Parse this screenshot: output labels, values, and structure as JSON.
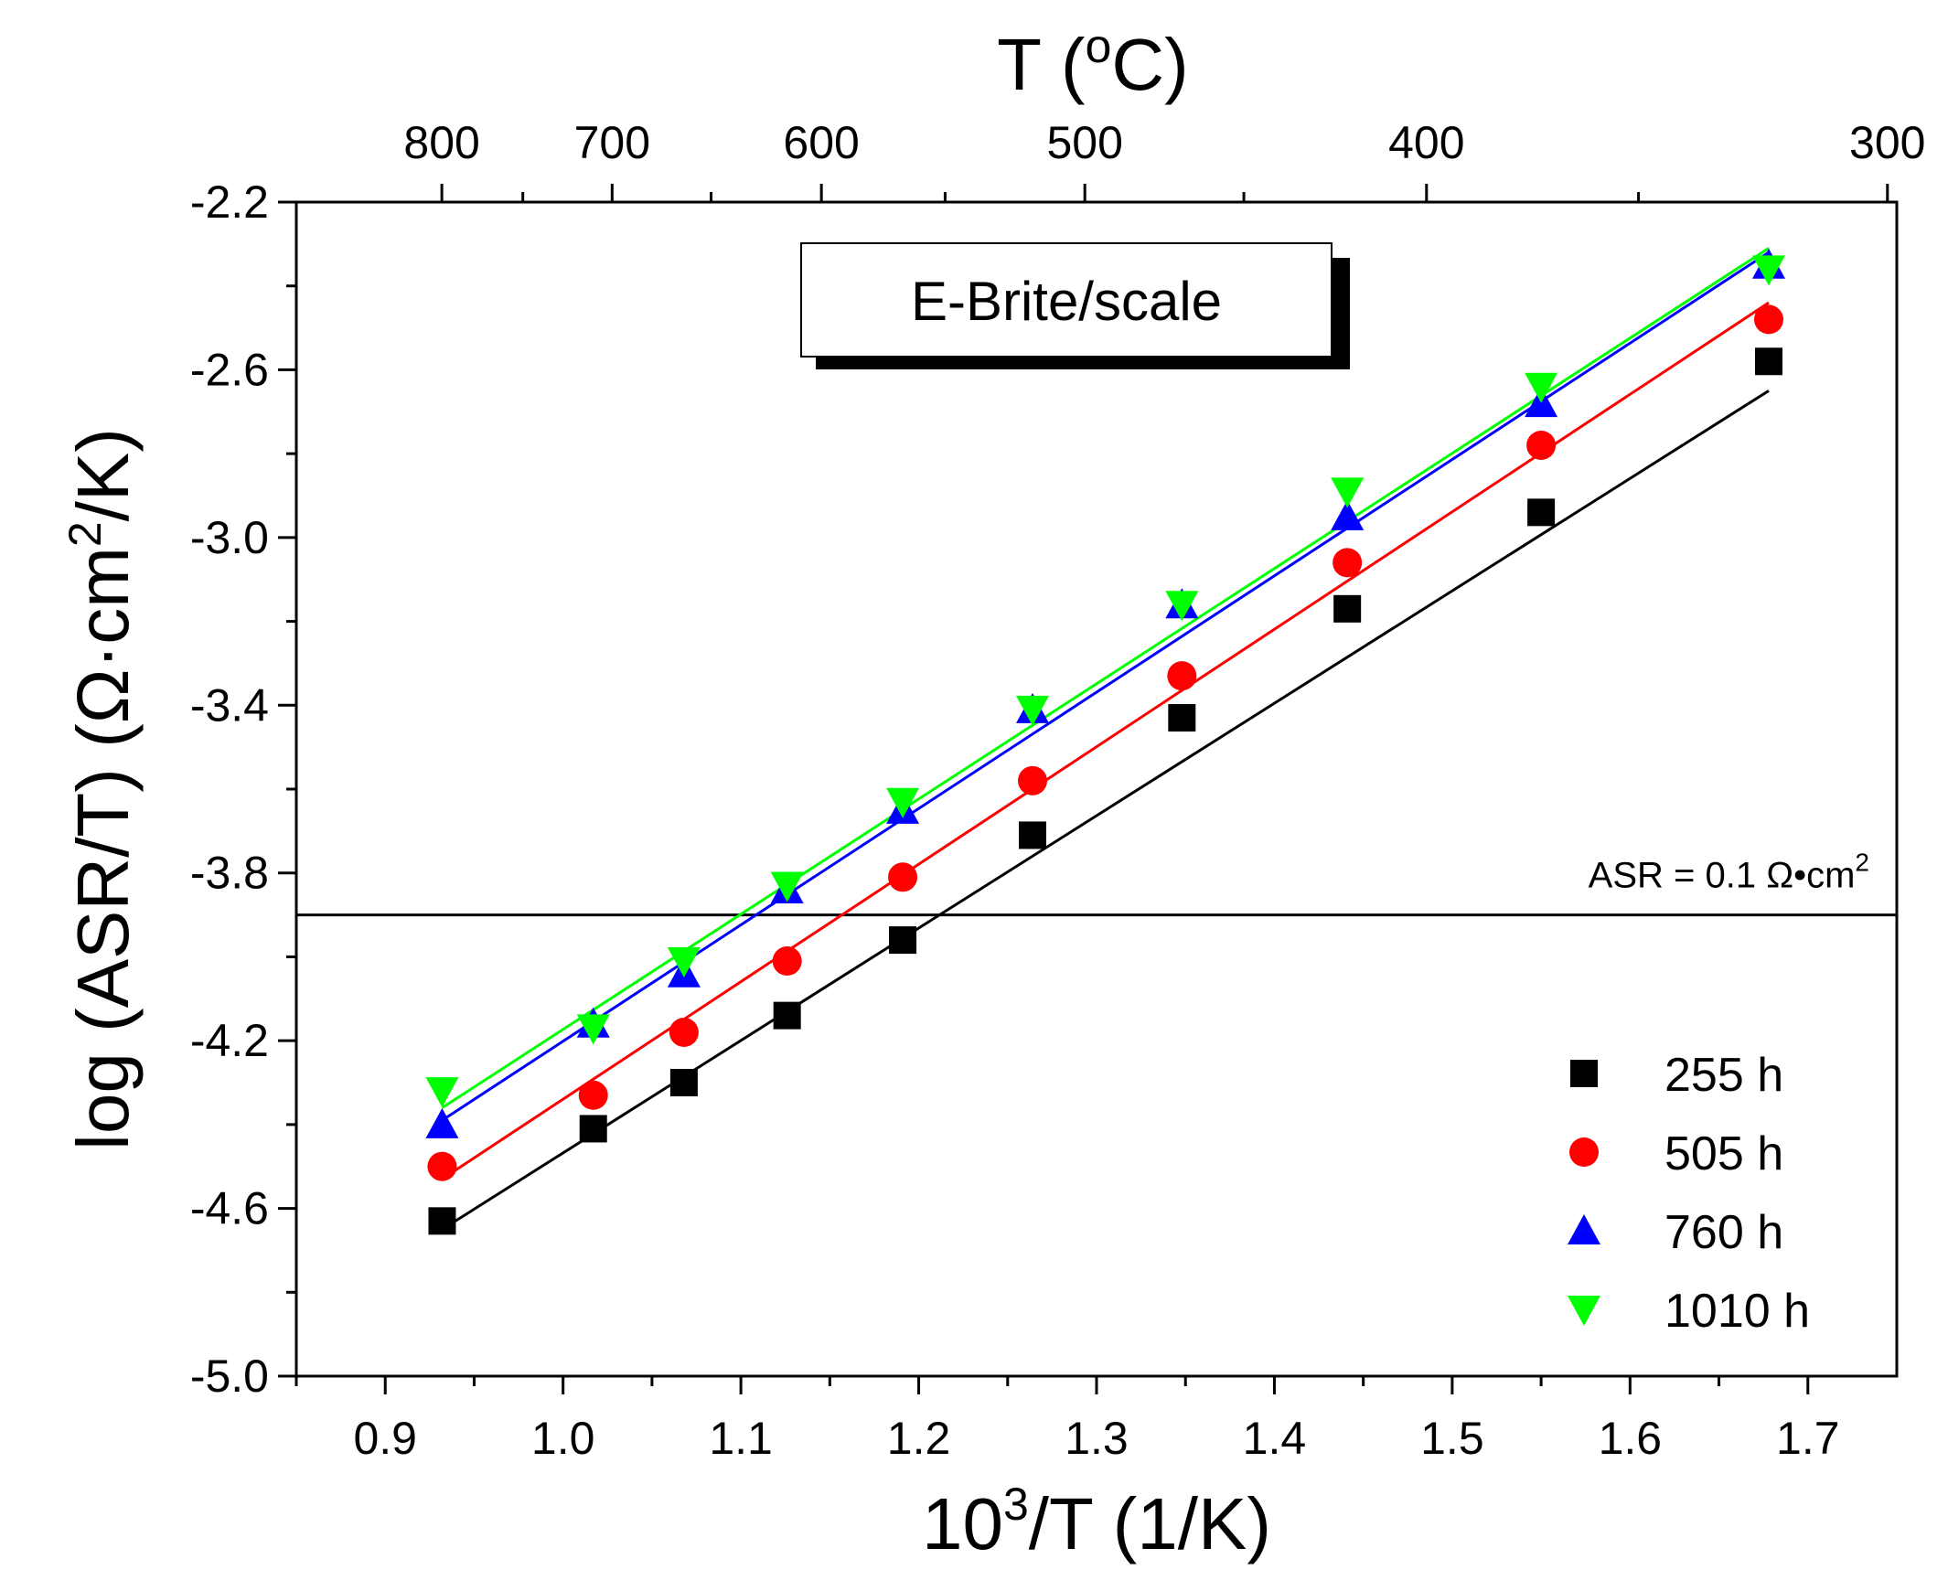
{
  "chart_data": {
    "type": "scatter",
    "title": "",
    "xlabel": "10³/T (1/K)",
    "xlabel_parts": {
      "base": "10",
      "sup": "3",
      "rest": "/T (1/K)"
    },
    "ylabel": "log (ASR/T) (Ω·cm²/K)",
    "ylabel_parts": {
      "pre": "log (ASR/T) (Ω·cm",
      "sup": "2",
      "post": "/K)"
    },
    "top_xlabel": "T (°C)",
    "top_xlabel_parts": {
      "pre": "T (",
      "sup": "o",
      "post": "C)"
    },
    "xlim": [
      0.85,
      1.75
    ],
    "ylim": [
      -5.0,
      -2.2
    ],
    "xticks": [
      0.9,
      1.0,
      1.1,
      1.2,
      1.3,
      1.4,
      1.5,
      1.6,
      1.7
    ],
    "xtick_labels": [
      "0.9",
      "1.0",
      "1.1",
      "1.2",
      "1.3",
      "1.4",
      "1.5",
      "1.6",
      "1.7"
    ],
    "yticks": [
      -5.0,
      -4.6,
      -4.2,
      -3.8,
      -3.4,
      -3.0,
      -2.6,
      -2.2
    ],
    "ytick_labels": [
      "-5.0",
      "-4.6",
      "-4.2",
      "-3.8",
      "-3.4",
      "-3.0",
      "-2.6",
      "-2.2"
    ],
    "top_ticks_celsius": [
      800,
      700,
      600,
      500,
      400,
      300
    ],
    "top_tick_labels": [
      "800",
      "700",
      "600",
      "500",
      "400",
      "300"
    ],
    "annotation_box": "E-Brite/scale",
    "reference_line": {
      "y": -3.9,
      "label_pre": "ASR = 0.1 Ω•cm",
      "label_sup": "2"
    },
    "legend_position": "bottom-right",
    "series": [
      {
        "name": "255 h",
        "marker": "square",
        "color": "#000000",
        "x": [
          0.932,
          1.017,
          1.068,
          1.126,
          1.191,
          1.264,
          1.348,
          1.441,
          1.55,
          1.678
        ],
        "y": [
          -4.63,
          -4.41,
          -4.3,
          -4.14,
          -3.96,
          -3.71,
          -3.43,
          -3.17,
          -2.94,
          -2.58
        ],
        "fit": [
          [
            0.932,
            -4.65
          ],
          [
            1.678,
            -2.65
          ]
        ]
      },
      {
        "name": "505 h",
        "marker": "circle",
        "color": "#ff0000",
        "x": [
          0.932,
          1.017,
          1.068,
          1.126,
          1.191,
          1.264,
          1.348,
          1.441,
          1.55,
          1.678
        ],
        "y": [
          -4.5,
          -4.33,
          -4.18,
          -4.01,
          -3.81,
          -3.58,
          -3.33,
          -3.06,
          -2.78,
          -2.48
        ],
        "fit": [
          [
            0.932,
            -4.53
          ],
          [
            1.678,
            -2.44
          ]
        ]
      },
      {
        "name": "760 h",
        "marker": "triangle-up",
        "color": "#0000ff",
        "x": [
          0.932,
          1.017,
          1.068,
          1.126,
          1.191,
          1.264,
          1.348,
          1.441,
          1.55,
          1.678
        ],
        "y": [
          -4.4,
          -4.16,
          -4.04,
          -3.84,
          -3.65,
          -3.41,
          -3.16,
          -2.95,
          -2.68,
          -2.35
        ],
        "fit": [
          [
            0.932,
            -4.39
          ],
          [
            1.678,
            -2.32
          ]
        ]
      },
      {
        "name": "1010 h",
        "marker": "triangle-down",
        "color": "#00ff00",
        "x": [
          0.932,
          1.017,
          1.068,
          1.126,
          1.191,
          1.264,
          1.348,
          1.441,
          1.55,
          1.678
        ],
        "y": [
          -4.32,
          -4.17,
          -4.01,
          -3.83,
          -3.63,
          -3.41,
          -3.16,
          -2.89,
          -2.64,
          -2.36
        ],
        "fit": [
          [
            0.932,
            -4.36
          ],
          [
            1.678,
            -2.31
          ]
        ]
      }
    ]
  }
}
